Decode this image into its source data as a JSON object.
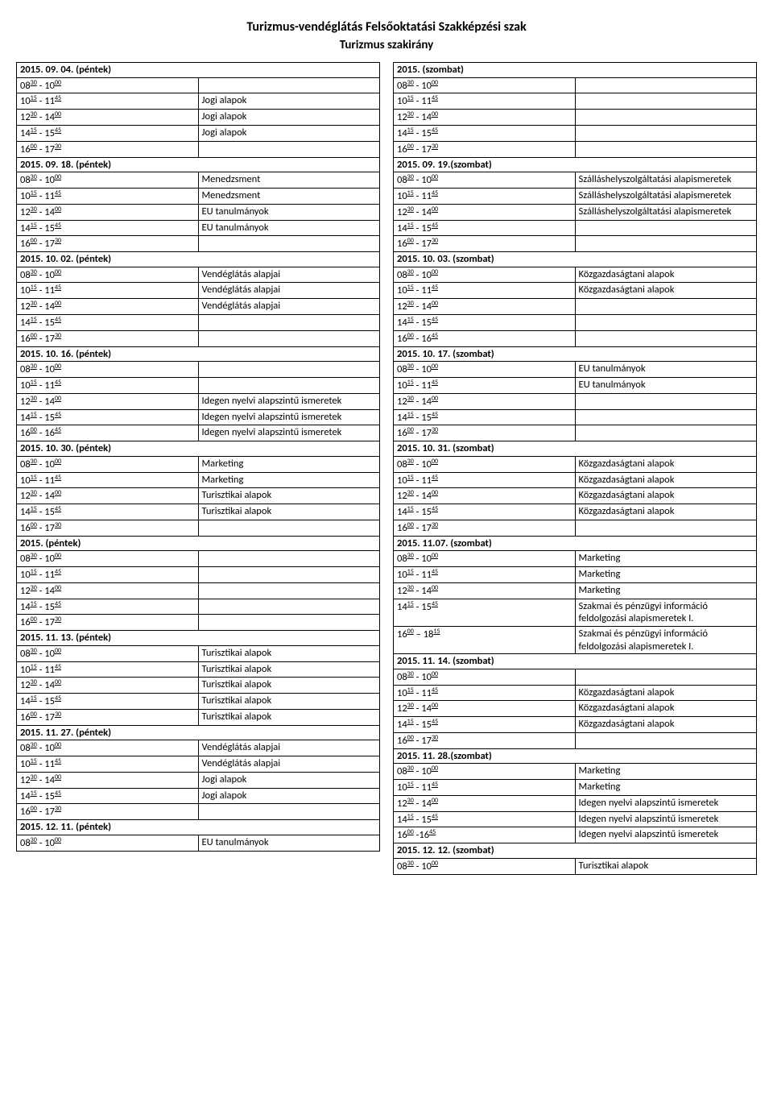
{
  "page": {
    "title": "Turizmus-vendéglátás Felsőoktatási Szakképzési szak",
    "subtitle": "Turizmus szakirány"
  },
  "blocks": [
    {
      "col": "L",
      "header": "2015. 09. 04. (péntek)",
      "rows": [
        {
          "t": "08|30| - 10|00|",
          "v": ""
        },
        {
          "t": "10|15| - 11|45|",
          "v": "Jogi alapok"
        },
        {
          "t": "12|30| - 14|00|",
          "v": "Jogi alapok"
        },
        {
          "t": "14|15| - 15|45|",
          "v": "Jogi alapok"
        },
        {
          "t": "16|00| - 17|30|",
          "v": ""
        }
      ]
    },
    {
      "col": "L",
      "header": "2015. 09. 18. (péntek)",
      "rows": [
        {
          "t": "08|30| - 10|00|",
          "v": "Menedzsment"
        },
        {
          "t": "10|15| - 11|45|",
          "v": "Menedzsment"
        },
        {
          "t": "12|30| - 14|00|",
          "v": "EU tanulmányok"
        },
        {
          "t": "14|15| - 15|45|",
          "v": "EU tanulmányok"
        },
        {
          "t": "16|00| - 17|30|",
          "v": ""
        }
      ]
    },
    {
      "col": "L",
      "header": "2015. 10. 02. (péntek)",
      "rows": [
        {
          "t": "08|30| - 10|00|",
          "v": "Vendéglátás alapjai"
        },
        {
          "t": "10|15| - 11|45|",
          "v": "Vendéglátás alapjai"
        },
        {
          "t": "12|30| - 14|00|",
          "v": "Vendéglátás alapjai"
        },
        {
          "t": "14|15| - 15|45|",
          "v": ""
        },
        {
          "t": "16|00| - 17|30|",
          "v": ""
        }
      ]
    },
    {
      "col": "L",
      "header": "2015. 10. 16. (péntek)",
      "rows": [
        {
          "t": "08|30| - 10|00|",
          "v": ""
        },
        {
          "t": "10|15| - 11|45|",
          "v": ""
        },
        {
          "t": "12|30| - 14|00|",
          "v": "Idegen nyelvi alapszintű ismeretek"
        },
        {
          "t": "14|15| - 15|45|",
          "v": "Idegen nyelvi alapszintű ismeretek"
        },
        {
          "t": "16|00| - 16|45|",
          "v": "Idegen nyelvi alapszintű ismeretek"
        }
      ]
    },
    {
      "col": "L",
      "header": "2015. 10. 30. (péntek)",
      "rows": [
        {
          "t": "08|30| - 10|00|",
          "v": "Marketing"
        },
        {
          "t": "10|15| - 11|45|",
          "v": "Marketing"
        },
        {
          "t": "12|30| - 14|00|",
          "v": "Turisztikai alapok"
        },
        {
          "t": "14|15| - 15|45|",
          "v": "Turisztikai alapok"
        },
        {
          "t": "16|00| - 17|30|",
          "v": ""
        }
      ]
    },
    {
      "col": "L",
      "header": "2015. (péntek)",
      "rows": [
        {
          "t": "08|30| - 10|00|",
          "v": ""
        },
        {
          "t": "10|15| - 11|45|",
          "v": ""
        },
        {
          "t": "12|30| - 14|00|",
          "v": ""
        },
        {
          "t": "14|15| - 15|45|",
          "v": ""
        },
        {
          "t": "16|00| - 17|30|",
          "v": ""
        }
      ]
    },
    {
      "col": "L",
      "header": "2015. 11. 13. (péntek)",
      "rows": [
        {
          "t": "08|30| - 10|00|",
          "v": "Turisztikai alapok"
        },
        {
          "t": "10|15| - 11|45|",
          "v": "Turisztikai alapok"
        },
        {
          "t": "12|30| - 14|00|",
          "v": "Turisztikai alapok"
        },
        {
          "t": "14|15| - 15|45|",
          "v": "Turisztikai alapok"
        },
        {
          "t": "16|00| - 17|30|",
          "v": "Turisztikai alapok"
        }
      ]
    },
    {
      "col": "L",
      "header": "2015. 11. 27. (péntek)",
      "rows": [
        {
          "t": "08|30| - 10|00|",
          "v": "Vendéglátás alapjai"
        },
        {
          "t": "10|15| - 11|45|",
          "v": "Vendéglátás alapjai"
        },
        {
          "t": "12|30| - 14|00|",
          "v": "Jogi alapok"
        },
        {
          "t": "14|15| - 15|45|",
          "v": "Jogi alapok"
        },
        {
          "t": "16|00| - 17|30|",
          "v": ""
        }
      ]
    },
    {
      "col": "L",
      "header": "2015. 12. 11. (péntek)",
      "rows": [
        {
          "t": "08|30| - 10|00|",
          "v": "EU tanulmányok"
        }
      ]
    },
    {
      "col": "R",
      "header": "2015. (szombat)",
      "rows": [
        {
          "t": "08|30| - 10|00|",
          "v": ""
        },
        {
          "t": "10|15| - 11|45|",
          "v": ""
        },
        {
          "t": "12|30| - 14|00|",
          "v": ""
        },
        {
          "t": "14|15| - 15|45|",
          "v": ""
        },
        {
          "t": "16|00| - 17|30|",
          "v": ""
        }
      ]
    },
    {
      "col": "R",
      "header": "2015. 09. 19.(szombat)",
      "rows": [
        {
          "t": "08|30| - 10|00|",
          "v": "Szálláshelyszolgáltatási alapismeretek"
        },
        {
          "t": "10|15| - 11|45|",
          "v": "Szálláshelyszolgáltatási alapismeretek"
        },
        {
          "t": "12|30| - 14|00|",
          "v": "Szálláshelyszolgáltatási alapismeretek"
        },
        {
          "t": "14|15| - 15|45|",
          "v": ""
        },
        {
          "t": "16|00| - 17|30|",
          "v": ""
        }
      ]
    },
    {
      "col": "R",
      "header": "2015. 10. 03. (szombat)",
      "rows": [
        {
          "t": "08|30| - 10|00|",
          "v": "Közgazdaságtani alapok"
        },
        {
          "t": "10|15| - 11|45|",
          "v": "Közgazdaságtani alapok"
        },
        {
          "t": "12|30| - 14|00|",
          "v": ""
        },
        {
          "t": "14|15| - 15|45|",
          "v": ""
        },
        {
          "t": "16|00| - 16|45|",
          "v": ""
        }
      ]
    },
    {
      "col": "R",
      "header": "2015. 10. 17. (szombat)",
      "rows": [
        {
          "t": "08|30| - 10|00|",
          "v": "EU tanulmányok"
        },
        {
          "t": "10|15| - 11|45|",
          "v": "EU tanulmányok"
        },
        {
          "t": "12|30| - 14|00|",
          "v": ""
        },
        {
          "t": "14|15| - 15|45|",
          "v": ""
        },
        {
          "t": "16|00| - 17|30|",
          "v": ""
        }
      ]
    },
    {
      "col": "R",
      "header": "2015. 10. 31. (szombat)",
      "rows": [
        {
          "t": "08|30| - 10|00|",
          "v": "Közgazdaságtani alapok"
        },
        {
          "t": "10|15| - 11|45|",
          "v": "Közgazdaságtani alapok"
        },
        {
          "t": "12|30| - 14|00|",
          "v": "Közgazdaságtani alapok"
        },
        {
          "t": "14|15| - 15|45|",
          "v": "Közgazdaságtani alapok"
        },
        {
          "t": "16|00| - 17|30|",
          "v": ""
        }
      ]
    },
    {
      "col": "R",
      "header": "2015. 11.07. (szombat)",
      "rows": [
        {
          "t": "08|30| - 10|00|",
          "v": "Marketing"
        },
        {
          "t": "10|15| - 11|45|",
          "v": "Marketing"
        },
        {
          "t": "12|30| - 14|00|",
          "v": "Marketing"
        },
        {
          "t": "14|15| - 15|45|",
          "v": "Szakmai és pénzügyi információ feldolgozási alapismeretek I."
        },
        {
          "t": "16|00| – 18|15|",
          "v": "Szakmai és pénzügyi információ feldolgozási alapismeretek I."
        }
      ]
    },
    {
      "col": "R",
      "header": "2015. 11. 14. (szombat)",
      "rows": [
        {
          "t": "08|30| - 10|00|",
          "v": ""
        },
        {
          "t": "10|15| - 11|45|",
          "v": "Közgazdaságtani alapok"
        },
        {
          "t": "12|30| - 14|00|",
          "v": "Közgazdaságtani alapok"
        },
        {
          "t": "14|15| - 15|45|",
          "v": "Közgazdaságtani alapok"
        },
        {
          "t": "16|00| - 17|30|",
          "v": ""
        }
      ]
    },
    {
      "col": "R",
      "header": "2015. 11. 28.(szombat)",
      "rows": [
        {
          "t": "08|30| - 10|00|",
          "v": "Marketing"
        },
        {
          "t": "10|15| - 11|45|",
          "v": "Marketing"
        },
        {
          "t": "12|30| - 14|00|",
          "v": "Idegen nyelvi alapszintű ismeretek"
        },
        {
          "t": "14|15| - 15|45|",
          "v": "Idegen nyelvi alapszintű ismeretek"
        },
        {
          "t": "16|00| -16|45|",
          "v": "Idegen nyelvi alapszintű ismeretek"
        }
      ]
    },
    {
      "col": "R",
      "header": "2015. 12. 12. (szombat)",
      "rows": [
        {
          "t": "08|30| - 10|00|",
          "v": "Turisztikai alapok"
        }
      ]
    }
  ]
}
